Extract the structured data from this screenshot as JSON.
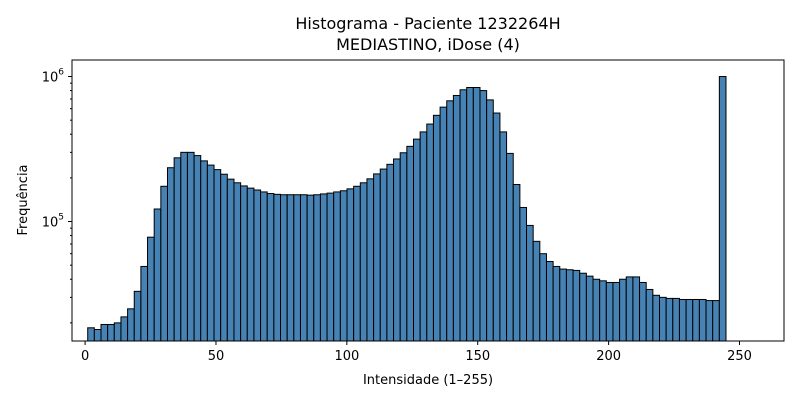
{
  "chart_data": {
    "type": "bar",
    "title": "Histograma - Paciente 1232264H",
    "subtitle": "MEDIASTINO, iDose (4)",
    "xlabel": "Intensidade (1–255)",
    "ylabel": "Frequência",
    "bar_color": "#4682b4",
    "edge_color": "#000000",
    "y_scale": "log",
    "xlim": [
      -5,
      267
    ],
    "ylim": [
      15000,
      1300000
    ],
    "x_ticks": [
      0,
      50,
      100,
      150,
      200,
      250
    ],
    "x_tick_labels": [
      "0",
      "50",
      "100",
      "150",
      "200",
      "250"
    ],
    "y_ticks": [
      100000,
      1000000
    ],
    "y_tick_labels": [
      {
        "base": "10",
        "exp": "5"
      },
      {
        "base": "10",
        "exp": "6"
      }
    ],
    "bin_width": 2.54,
    "bin_start": 1,
    "values": [
      18500,
      18000,
      19500,
      19500,
      20000,
      22000,
      25000,
      33000,
      49000,
      78000,
      122000,
      175000,
      235000,
      275000,
      300000,
      300000,
      285000,
      262000,
      245000,
      228000,
      212000,
      196000,
      185000,
      176000,
      170000,
      165000,
      160000,
      156000,
      154000,
      153000,
      153000,
      153000,
      153000,
      152000,
      153000,
      155000,
      157000,
      160000,
      163000,
      168000,
      175000,
      185000,
      197000,
      213000,
      230000,
      248000,
      270000,
      298000,
      330000,
      370000,
      415000,
      470000,
      540000,
      615000,
      680000,
      740000,
      810000,
      840000,
      840000,
      800000,
      690000,
      560000,
      415000,
      295000,
      180000,
      125000,
      94000,
      73000,
      60000,
      53000,
      49000,
      47000,
      46500,
      46000,
      44000,
      42000,
      40000,
      39000,
      38000,
      38000,
      40000,
      41500,
      41500,
      38000,
      34000,
      31000,
      30000,
      29500,
      29500,
      29000,
      29000,
      29000,
      29000,
      28500,
      28500,
      1000000
    ]
  }
}
